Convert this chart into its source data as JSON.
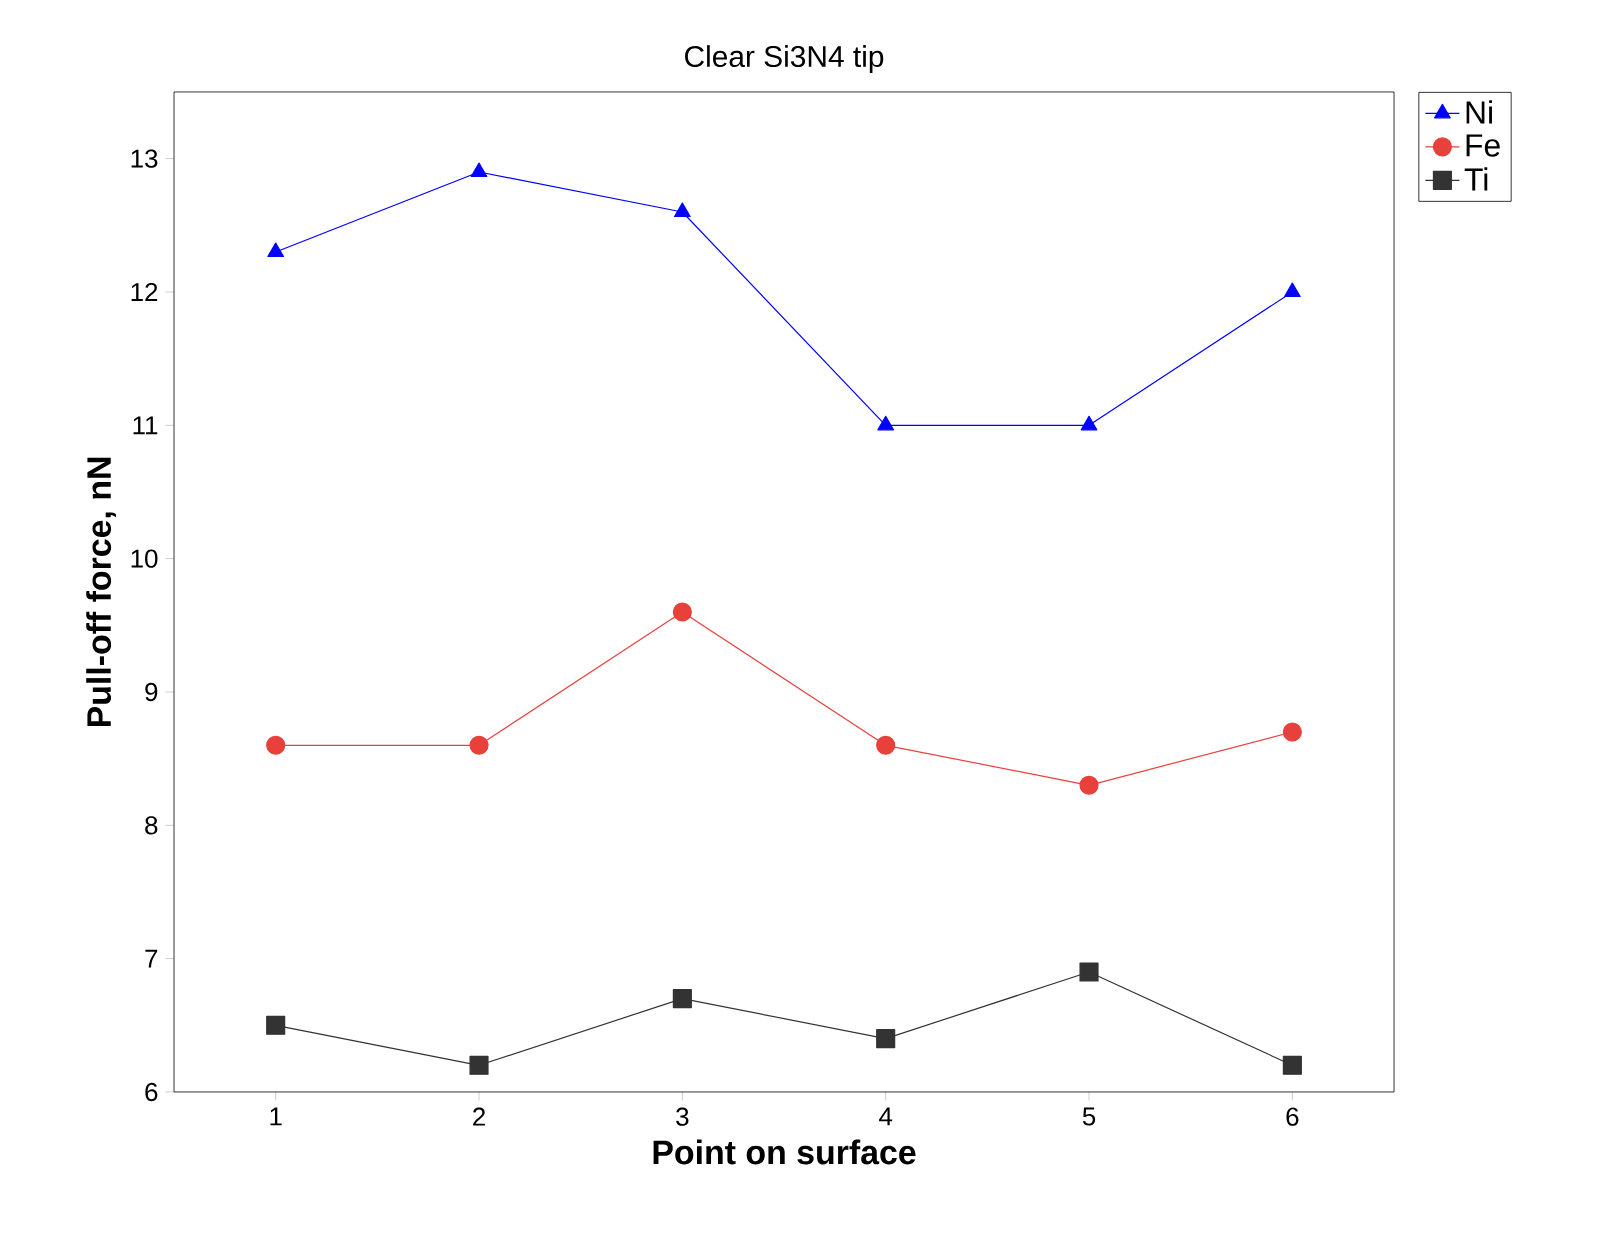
{
  "chart_data": {
    "type": "line",
    "title": "Clear Si3N4 tip",
    "xlabel": "**Point on surface**",
    "ylabel": "**Pull-off force, nN**",
    "x": [
      1,
      2,
      3,
      4,
      5,
      6
    ],
    "series": [
      {
        "name": "Ni",
        "color": "#0000ff",
        "marker": "triangle",
        "values": [
          12.3,
          12.9,
          12.6,
          11.0,
          11.0,
          12.0
        ]
      },
      {
        "name": "Fe",
        "color": "#e8413c",
        "marker": "circle",
        "values": [
          8.6,
          8.6,
          9.6,
          8.6,
          8.3,
          8.7
        ]
      },
      {
        "name": "Ti",
        "color": "#333333",
        "marker": "square",
        "values": [
          6.5,
          6.2,
          6.7,
          6.4,
          6.9,
          6.2
        ]
      }
    ],
    "xlim": [
      0.5,
      6.5
    ],
    "ylim": [
      6,
      13.5
    ],
    "xticks": [
      1,
      2,
      3,
      4,
      5,
      6
    ],
    "yticks": [
      6,
      7,
      8,
      9,
      10,
      11,
      12,
      13
    ],
    "grid": false,
    "legend": "top right",
    "line_style": "solid"
  }
}
